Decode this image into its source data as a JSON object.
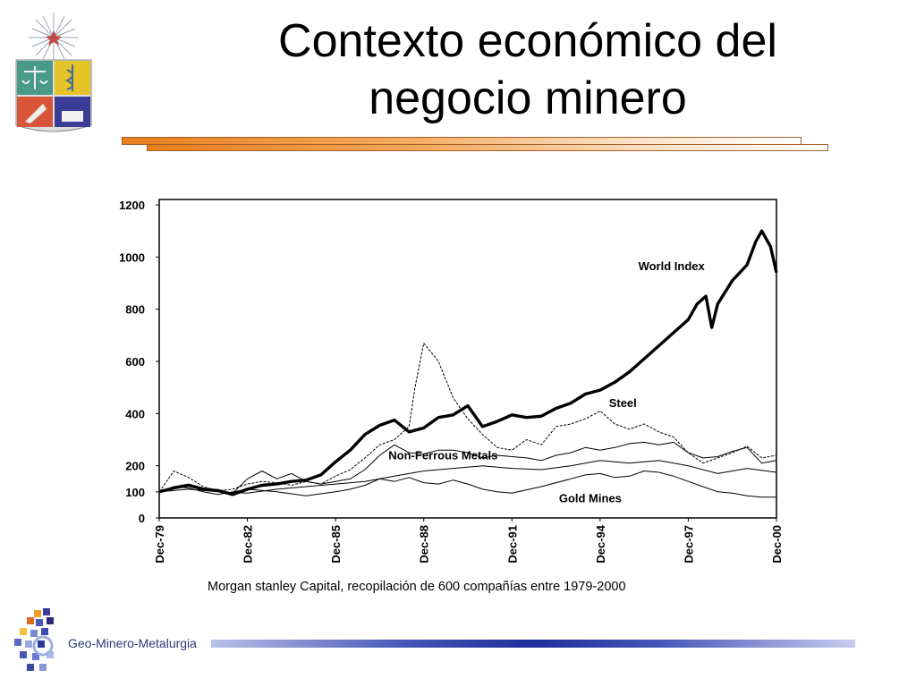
{
  "slide": {
    "title": "Contexto económico del\nnegocio minero",
    "caption": "Morgan stanley Capital, recopilación de 600 compañías entre 1979-2000",
    "footer_brand": "Geo-Minero-Metalurgia"
  },
  "colors": {
    "accent_orange": "#e87e1c",
    "footer_blue": "#1c2f9a"
  },
  "chart_data": {
    "type": "line",
    "title": "",
    "xlabel": "",
    "ylabel": "",
    "ylim": [
      0,
      1200
    ],
    "xlim": [
      0,
      21
    ],
    "y_ticks": [
      "0",
      "100",
      "200",
      "400",
      "600",
      "800",
      "1000",
      "1200"
    ],
    "y_tick_values": [
      0,
      100,
      200,
      400,
      600,
      800,
      1000,
      1200
    ],
    "x_ticks": [
      "Dec-79",
      "Dec-82",
      "Dec-85",
      "Dec-88",
      "Dec-91",
      "Dec-94",
      "Dec-97",
      "Dec-00"
    ],
    "x_tick_values": [
      0,
      3,
      6,
      9,
      12,
      15,
      18,
      21
    ],
    "grid": false,
    "series": [
      {
        "name": "World Index",
        "style": "thick",
        "points": [
          [
            0,
            100
          ],
          [
            0.5,
            115
          ],
          [
            1,
            125
          ],
          [
            1.5,
            110
          ],
          [
            2,
            105
          ],
          [
            2.5,
            90
          ],
          [
            3,
            110
          ],
          [
            3.5,
            125
          ],
          [
            4,
            130
          ],
          [
            4.5,
            140
          ],
          [
            5,
            145
          ],
          [
            5.5,
            165
          ],
          [
            6,
            215
          ],
          [
            6.5,
            260
          ],
          [
            7,
            320
          ],
          [
            7.5,
            355
          ],
          [
            8,
            375
          ],
          [
            8.5,
            330
          ],
          [
            9,
            345
          ],
          [
            9.5,
            385
          ],
          [
            10,
            395
          ],
          [
            10.5,
            430
          ],
          [
            11,
            350
          ],
          [
            11.5,
            370
          ],
          [
            12,
            395
          ],
          [
            12.5,
            385
          ],
          [
            13,
            390
          ],
          [
            13.5,
            420
          ],
          [
            14,
            440
          ],
          [
            14.5,
            475
          ],
          [
            15,
            490
          ],
          [
            15.5,
            520
          ],
          [
            16,
            560
          ],
          [
            16.5,
            610
          ],
          [
            17,
            660
          ],
          [
            17.5,
            710
          ],
          [
            18,
            760
          ],
          [
            18.3,
            820
          ],
          [
            18.6,
            850
          ],
          [
            18.8,
            730
          ],
          [
            19,
            820
          ],
          [
            19.5,
            910
          ],
          [
            20,
            970
          ],
          [
            20.3,
            1060
          ],
          [
            20.5,
            1100
          ],
          [
            20.8,
            1040
          ],
          [
            21,
            940
          ]
        ]
      },
      {
        "name": "Steel",
        "style": "thin",
        "points": [
          [
            0,
            100
          ],
          [
            0.5,
            180
          ],
          [
            1,
            155
          ],
          [
            1.5,
            120
          ],
          [
            2,
            105
          ],
          [
            2.5,
            110
          ],
          [
            3,
            130
          ],
          [
            3.5,
            140
          ],
          [
            4,
            135
          ],
          [
            4.5,
            125
          ],
          [
            5,
            140
          ],
          [
            5.5,
            130
          ],
          [
            6,
            160
          ],
          [
            6.5,
            185
          ],
          [
            7,
            230
          ],
          [
            7.5,
            280
          ],
          [
            8,
            300
          ],
          [
            8.5,
            350
          ],
          [
            8.7,
            500
          ],
          [
            9,
            670
          ],
          [
            9.5,
            600
          ],
          [
            10,
            460
          ],
          [
            10.5,
            380
          ],
          [
            11,
            320
          ],
          [
            11.5,
            270
          ],
          [
            12,
            260
          ],
          [
            12.5,
            300
          ],
          [
            13,
            280
          ],
          [
            13.5,
            350
          ],
          [
            14,
            360
          ],
          [
            14.5,
            380
          ],
          [
            15,
            410
          ],
          [
            15.5,
            360
          ],
          [
            16,
            340
          ],
          [
            16.5,
            360
          ],
          [
            17,
            330
          ],
          [
            17.5,
            310
          ],
          [
            18,
            250
          ],
          [
            18.5,
            210
          ],
          [
            19,
            230
          ],
          [
            19.5,
            250
          ],
          [
            20,
            275
          ],
          [
            20.5,
            230
          ],
          [
            21,
            240
          ]
        ]
      },
      {
        "name": "Non-Ferrous Metals",
        "style": "thin",
        "points": [
          [
            0,
            100
          ],
          [
            0.5,
            120
          ],
          [
            1,
            130
          ],
          [
            1.5,
            115
          ],
          [
            2,
            100
          ],
          [
            2.5,
            95
          ],
          [
            3,
            150
          ],
          [
            3.5,
            180
          ],
          [
            4,
            150
          ],
          [
            4.5,
            170
          ],
          [
            5,
            140
          ],
          [
            5.5,
            130
          ],
          [
            6,
            140
          ],
          [
            6.5,
            150
          ],
          [
            7,
            185
          ],
          [
            7.5,
            240
          ],
          [
            8,
            280
          ],
          [
            8.5,
            250
          ],
          [
            9,
            245
          ],
          [
            9.5,
            260
          ],
          [
            10,
            260
          ],
          [
            10.5,
            250
          ],
          [
            11,
            230
          ],
          [
            11.5,
            240
          ],
          [
            12,
            235
          ],
          [
            12.5,
            230
          ],
          [
            13,
            220
          ],
          [
            13.5,
            240
          ],
          [
            14,
            250
          ],
          [
            14.5,
            270
          ],
          [
            15,
            260
          ],
          [
            15.5,
            270
          ],
          [
            16,
            285
          ],
          [
            16.5,
            290
          ],
          [
            17,
            280
          ],
          [
            17.5,
            290
          ],
          [
            18,
            250
          ],
          [
            18.5,
            230
          ],
          [
            19,
            235
          ],
          [
            19.5,
            255
          ],
          [
            20,
            270
          ],
          [
            20.5,
            210
          ],
          [
            21,
            220
          ]
        ]
      },
      {
        "name": "",
        "style": "thin",
        "points": [
          [
            0,
            100
          ],
          [
            1,
            110
          ],
          [
            2,
            100
          ],
          [
            3,
            95
          ],
          [
            4,
            110
          ],
          [
            5,
            120
          ],
          [
            6,
            130
          ],
          [
            7,
            140
          ],
          [
            8,
            160
          ],
          [
            9,
            180
          ],
          [
            10,
            190
          ],
          [
            11,
            200
          ],
          [
            12,
            190
          ],
          [
            13,
            185
          ],
          [
            14,
            200
          ],
          [
            15,
            220
          ],
          [
            16,
            210
          ],
          [
            17,
            220
          ],
          [
            18,
            200
          ],
          [
            19,
            170
          ],
          [
            20,
            190
          ],
          [
            21,
            175
          ]
        ]
      },
      {
        "name": "Gold Mines",
        "style": "thin",
        "points": [
          [
            0,
            100
          ],
          [
            0.5,
            120
          ],
          [
            1,
            115
          ],
          [
            1.5,
            100
          ],
          [
            2,
            90
          ],
          [
            3,
            110
          ],
          [
            4,
            100
          ],
          [
            5,
            85
          ],
          [
            6,
            100
          ],
          [
            6.5,
            110
          ],
          [
            7,
            125
          ],
          [
            7.5,
            150
          ],
          [
            8,
            140
          ],
          [
            8.5,
            155
          ],
          [
            9,
            135
          ],
          [
            9.5,
            130
          ],
          [
            10,
            145
          ],
          [
            10.5,
            130
          ],
          [
            11,
            110
          ],
          [
            11.5,
            100
          ],
          [
            12,
            95
          ],
          [
            13,
            120
          ],
          [
            14,
            150
          ],
          [
            14.5,
            165
          ],
          [
            15,
            170
          ],
          [
            15.5,
            155
          ],
          [
            16,
            160
          ],
          [
            16.5,
            180
          ],
          [
            17,
            175
          ],
          [
            17.5,
            160
          ],
          [
            18,
            140
          ],
          [
            18.5,
            120
          ],
          [
            19,
            100
          ],
          [
            19.5,
            95
          ],
          [
            20,
            85
          ],
          [
            20.5,
            80
          ],
          [
            21,
            80
          ]
        ]
      }
    ],
    "annotations": [
      {
        "text": "World Index",
        "x": 16.3,
        "y": 950
      },
      {
        "text": "Steel",
        "x": 15.3,
        "y": 425
      },
      {
        "text": "Non-Ferrous Metals",
        "x": 7.8,
        "y": 225
      },
      {
        "text": "Gold Mines",
        "x": 13.6,
        "y": 60
      }
    ]
  }
}
